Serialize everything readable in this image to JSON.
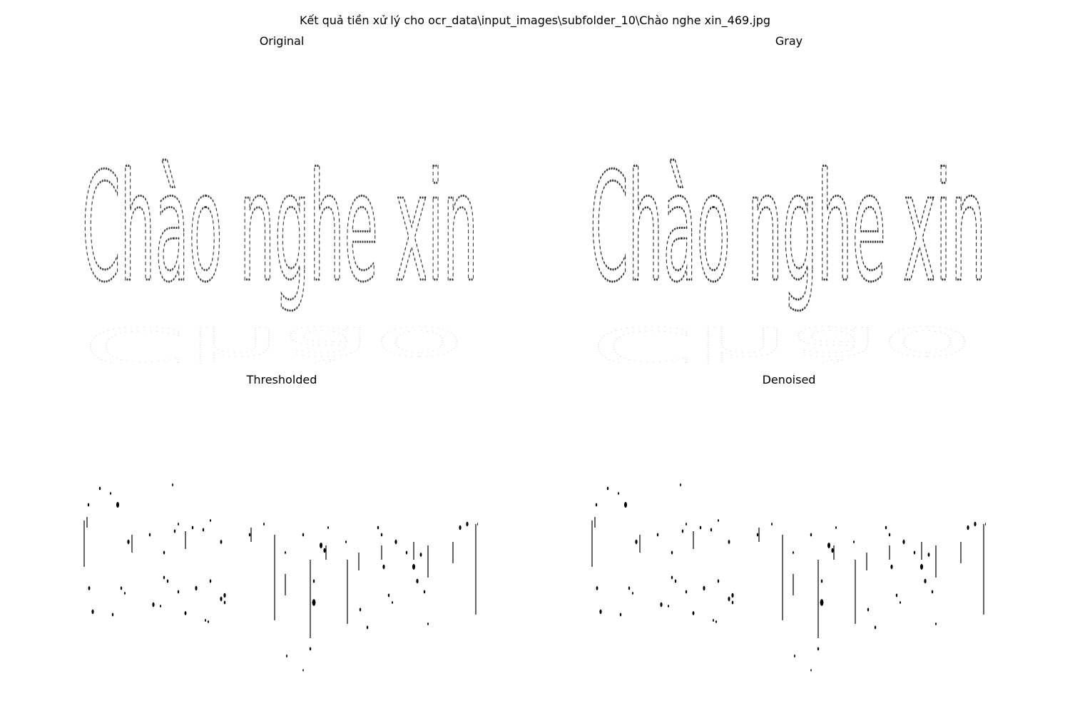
{
  "figure": {
    "title": "Kết quả tiền xử lý cho ocr_data\\input_images\\subfolder_10\\Chào nghe xin_469.jpg"
  },
  "panels": [
    {
      "id": "original",
      "title": "Original",
      "word": "Chào nghe xin",
      "color": "#3a3a3a"
    },
    {
      "id": "gray",
      "title": "Gray",
      "word": "Chào nghe xin",
      "color": "#2a2a2a"
    },
    {
      "id": "thresholded",
      "title": "Thresholded",
      "color": "#000000"
    },
    {
      "id": "denoised",
      "title": "Denoised",
      "color": "#000000"
    }
  ]
}
